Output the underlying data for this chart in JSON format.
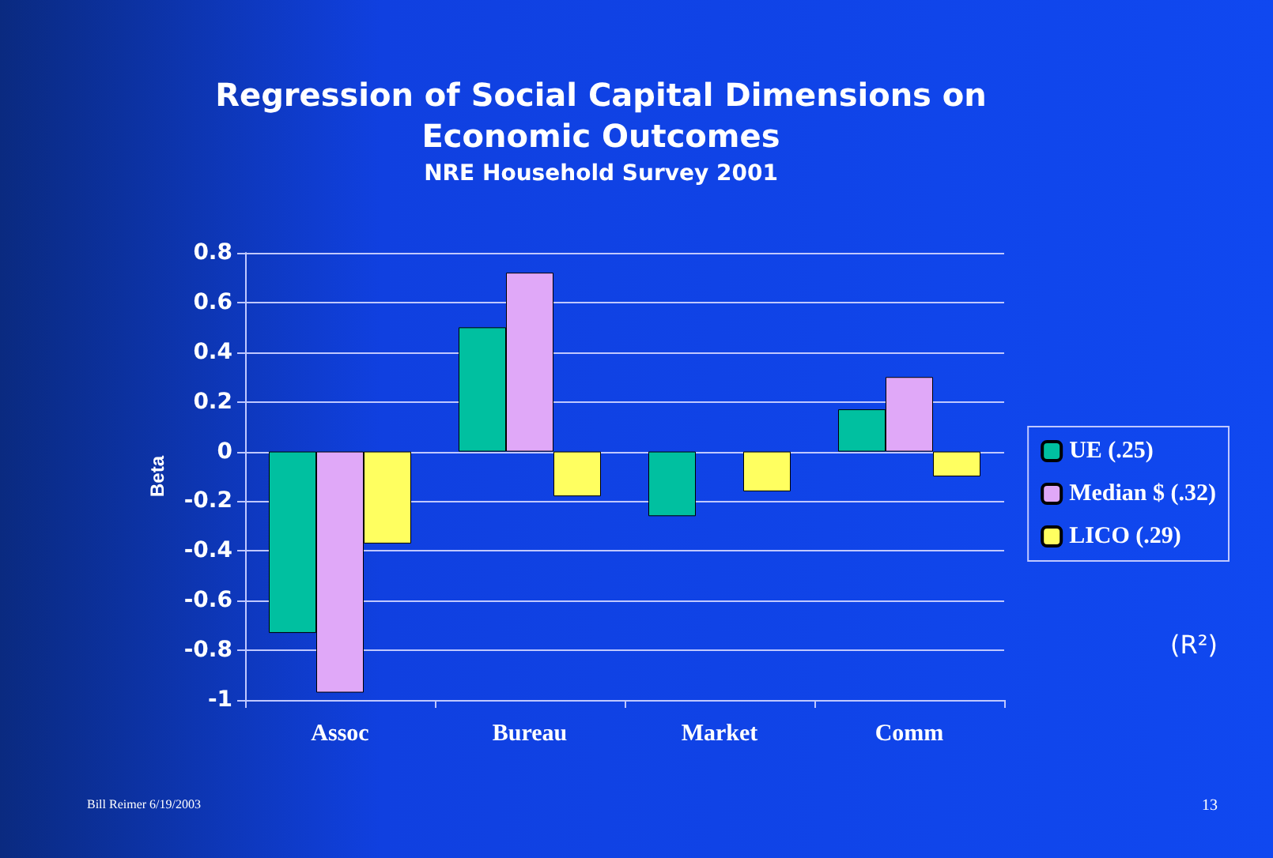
{
  "chart_data": {
    "type": "bar",
    "title": "Regression of Social Capital Dimensions on\nEconomic Outcomes",
    "subtitle": "NRE Household Survey 2001",
    "ylabel": "Beta",
    "categories": [
      "Assoc",
      "Bureau",
      "Market",
      "Comm"
    ],
    "series": [
      {
        "name": "UE (.25)",
        "color": "#00c0a0",
        "values": [
          -0.73,
          0.5,
          -0.26,
          0.17
        ]
      },
      {
        "name": "Median $ (.32)",
        "color": "#e0a8f8",
        "values": [
          -0.97,
          0.72,
          null,
          0.3
        ]
      },
      {
        "name": "LICO (.29)",
        "color": "#ffff60",
        "values": [
          -0.37,
          -0.18,
          -0.16,
          -0.1
        ]
      }
    ],
    "ylim": [
      -1,
      0.8
    ],
    "yticks": [
      -1,
      -0.8,
      -0.6,
      -0.4,
      -0.2,
      0,
      0.2,
      0.4,
      0.6,
      0.8
    ],
    "grid": "y",
    "legend": "right",
    "annotations": [
      "(R²)",
      "Bill Reimer 6/19/2003",
      "13"
    ]
  }
}
